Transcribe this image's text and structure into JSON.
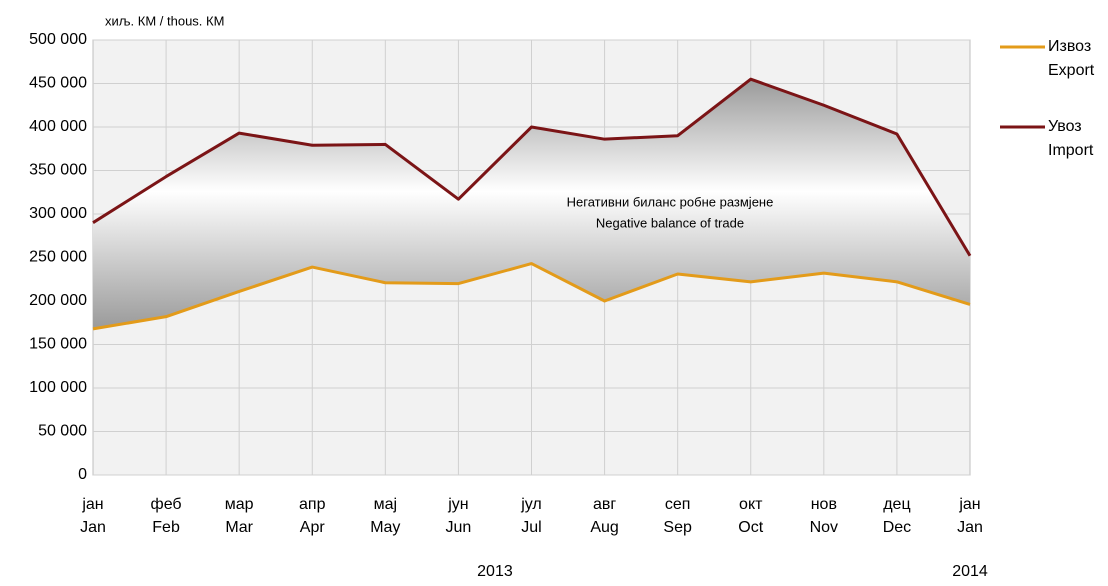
{
  "chart_data": {
    "type": "line",
    "unit_label": "хиљ. КМ / thous. КМ",
    "annotation": [
      "Негативни биланс робне размјене",
      "Negative balance of trade"
    ],
    "categories": [
      [
        "јан",
        "Jan"
      ],
      [
        "феб",
        "Feb"
      ],
      [
        "мар",
        "Mar"
      ],
      [
        "апр",
        "Apr"
      ],
      [
        "мај",
        "May"
      ],
      [
        "јун",
        "Jun"
      ],
      [
        "јул",
        "Jul"
      ],
      [
        "авг",
        "Aug"
      ],
      [
        "сеп",
        "Sep"
      ],
      [
        "окт",
        "Oct"
      ],
      [
        "нов",
        "Nov"
      ],
      [
        "дец",
        "Dec"
      ],
      [
        "јан",
        "Jan"
      ]
    ],
    "years": [
      "2013",
      "2014"
    ],
    "series": [
      {
        "name": [
          "Извоз",
          "Export"
        ],
        "color": "#e39b1a",
        "values": [
          168000,
          182000,
          211000,
          239000,
          221000,
          220000,
          243000,
          200000,
          231000,
          222000,
          232000,
          222000,
          196000
        ]
      },
      {
        "name": [
          "Увоз",
          "Import"
        ],
        "color": "#7b1416",
        "values": [
          290000,
          343000,
          393000,
          379000,
          380000,
          317000,
          400000,
          386000,
          390000,
          455000,
          425000,
          392000,
          252000
        ]
      }
    ],
    "ylim": [
      0,
      500000
    ],
    "yticks": [
      0,
      {
        "value": 50000,
        "label": "50 000"
      },
      {
        "value": 100000,
        "label": "100 000"
      },
      {
        "value": 150000,
        "label": "150 000"
      },
      {
        "value": 200000,
        "label": "200 000"
      },
      {
        "value": 250000,
        "label": "250 000"
      },
      {
        "value": 300000,
        "label": "300 000"
      },
      {
        "value": 350000,
        "label": "350 000"
      },
      {
        "value": 400000,
        "label": "400 000"
      },
      {
        "value": 450000,
        "label": "450 000"
      },
      {
        "value": 500000,
        "label": "500 000"
      }
    ],
    "grid": true
  }
}
